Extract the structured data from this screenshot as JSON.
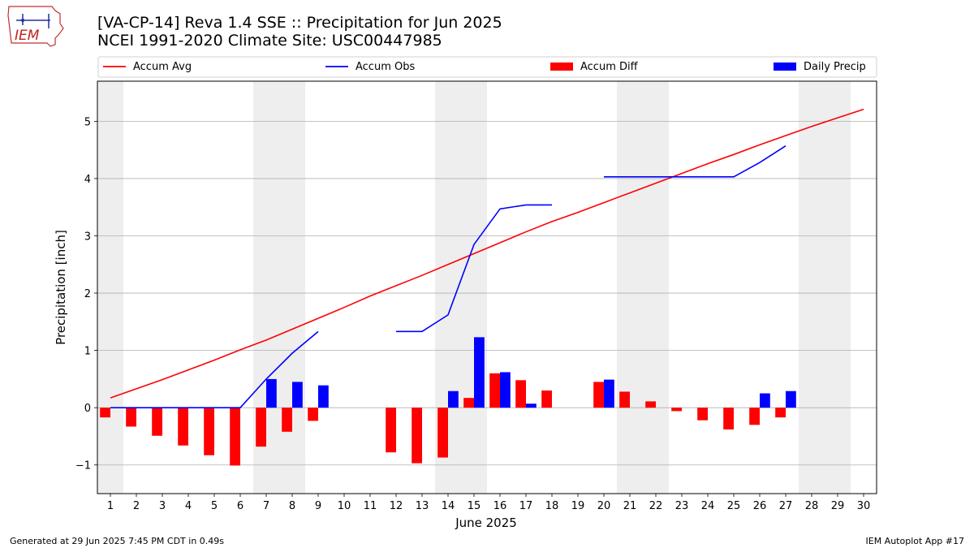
{
  "header": {
    "title_line1": "[VA-CP-14] Reva 1.4 SSE :: Precipitation for Jun 2025",
    "title_line2": "NCEI 1991-2020 Climate Site: USC00447985"
  },
  "logo": {
    "text": "IEM"
  },
  "footer": {
    "left": "Generated at 29 Jun 2025 7:45 PM CDT in 0.49s",
    "right": "IEM Autoplot App #17"
  },
  "chart_data": {
    "type": "bar",
    "xlabel": "June 2025",
    "ylabel": "Precipitation [inch]",
    "xlim": [
      0.5,
      30.5
    ],
    "ylim": [
      -1.5,
      5.7
    ],
    "yticks": [
      -1,
      0,
      1,
      2,
      3,
      4,
      5
    ],
    "ytick_labels": [
      "−1",
      "0",
      "1",
      "2",
      "3",
      "4",
      "5"
    ],
    "xticks": [
      1,
      2,
      3,
      4,
      5,
      6,
      7,
      8,
      9,
      10,
      11,
      12,
      13,
      14,
      15,
      16,
      17,
      18,
      19,
      20,
      21,
      22,
      23,
      24,
      25,
      26,
      27,
      28,
      29,
      30
    ],
    "grid": "horizontal",
    "weekend_shading": [
      [
        0.5,
        1.5
      ],
      [
        6.5,
        8.5
      ],
      [
        13.5,
        15.5
      ],
      [
        20.5,
        22.5
      ],
      [
        27.5,
        29.5
      ]
    ],
    "legend": {
      "placement": "top",
      "entries": [
        "Accum Avg",
        "Accum Obs",
        "Accum Diff",
        "Daily Precip"
      ]
    },
    "colors": {
      "avg": "#ff0000",
      "obs": "#0000ff",
      "diff": "#ff0000",
      "daily": "#0000ff",
      "shade": "#eeeeee",
      "grid": "#b0b0b0"
    },
    "series": [
      {
        "name": "Accum Avg",
        "kind": "line",
        "x": [
          1,
          2,
          3,
          4,
          5,
          6,
          7,
          8,
          9,
          10,
          11,
          12,
          13,
          14,
          15,
          16,
          17,
          18,
          19,
          20,
          21,
          22,
          23,
          24,
          25,
          26,
          27,
          28,
          29,
          30
        ],
        "values": [
          0.17,
          0.33,
          0.49,
          0.66,
          0.83,
          1.01,
          1.18,
          1.37,
          1.56,
          1.75,
          1.95,
          2.13,
          2.31,
          2.5,
          2.69,
          2.88,
          3.07,
          3.25,
          3.41,
          3.58,
          3.75,
          3.92,
          4.09,
          4.26,
          4.42,
          4.59,
          4.75,
          4.91,
          5.06,
          5.21
        ]
      },
      {
        "name": "Accum Obs",
        "kind": "line",
        "segments": [
          {
            "x": [
              1,
              2,
              3,
              4,
              5,
              6,
              7,
              8,
              9
            ],
            "values": [
              0,
              0,
              0,
              0,
              0,
              0,
              0.5,
              0.95,
              1.33
            ]
          },
          {
            "x": [
              12,
              13,
              14,
              15,
              16,
              17,
              18
            ],
            "values": [
              1.33,
              1.33,
              1.62,
              2.85,
              3.47,
              3.54,
              3.54
            ]
          },
          {
            "x": [
              20,
              21,
              22,
              23,
              24,
              25,
              26,
              27
            ],
            "values": [
              4.03,
              4.03,
              4.03,
              4.03,
              4.03,
              4.03,
              4.28,
              4.57
            ]
          }
        ]
      },
      {
        "name": "Accum Diff",
        "kind": "bar",
        "x": [
          1,
          2,
          3,
          4,
          5,
          6,
          7,
          8,
          9,
          12,
          13,
          14,
          15,
          16,
          17,
          18,
          20,
          21,
          22,
          23,
          24,
          25,
          26,
          27
        ],
        "values": [
          -0.17,
          -0.33,
          -0.49,
          -0.66,
          -0.83,
          -1.01,
          -0.68,
          -0.42,
          -0.23,
          -0.78,
          -0.97,
          -0.87,
          0.17,
          0.6,
          0.48,
          0.3,
          0.45,
          0.28,
          0.11,
          -0.06,
          -0.22,
          -0.38,
          -0.3,
          -0.17
        ]
      },
      {
        "name": "Daily Precip",
        "kind": "bar",
        "x": [
          7,
          8,
          9,
          14,
          15,
          16,
          17,
          20,
          26,
          27
        ],
        "values": [
          0.5,
          0.45,
          0.39,
          0.29,
          1.23,
          0.62,
          0.07,
          0.49,
          0.25,
          0.29
        ]
      }
    ]
  }
}
